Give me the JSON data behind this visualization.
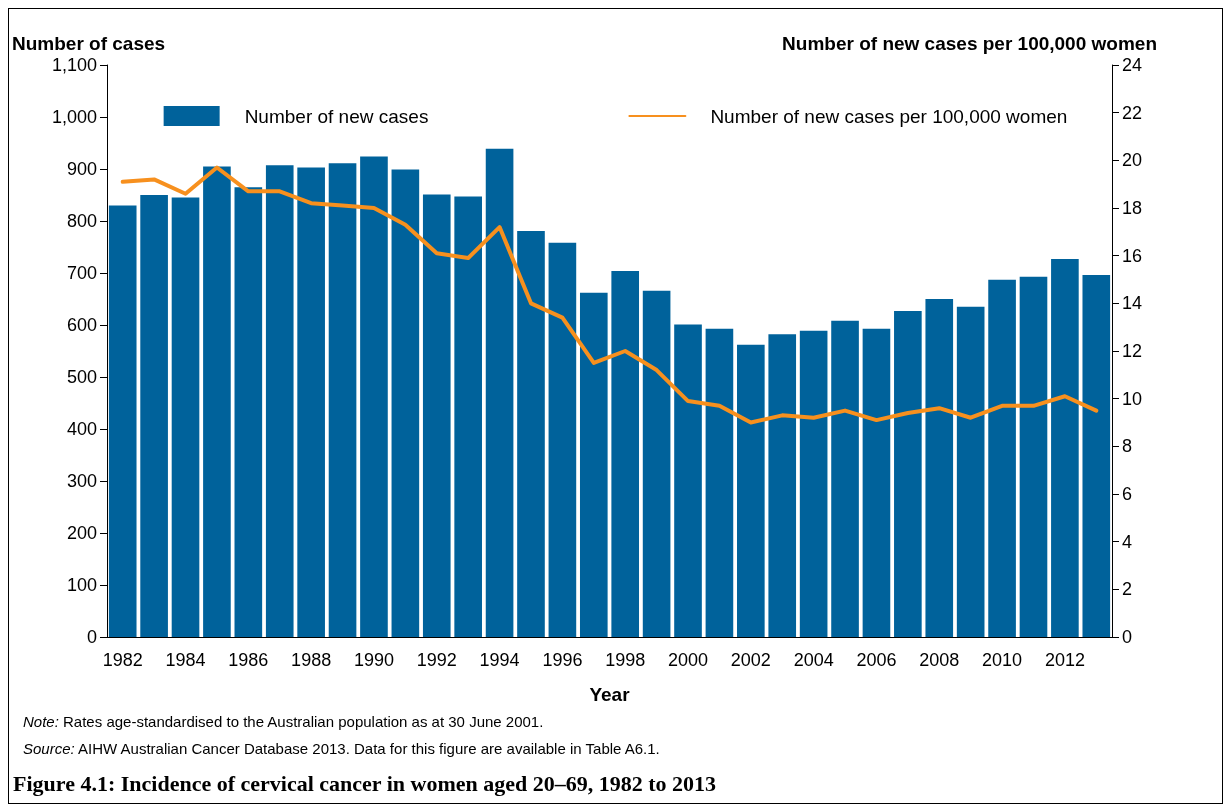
{
  "chart_data": {
    "type": "bar",
    "title": "Figure 4.1: Incidence of cervical cancer in women aged 20–69, 1982 to 2013",
    "xlabel": "Year",
    "ylabel": "Number of cases",
    "y2label": "Number of new cases per 100,000 women",
    "categories": [
      "1982",
      null,
      "1984",
      null,
      "1986",
      null,
      "1988",
      null,
      "1990",
      null,
      "1992",
      null,
      "1994",
      null,
      "1996",
      null,
      "1998",
      null,
      "2000",
      null,
      "2002",
      null,
      "2004",
      null,
      "2006",
      null,
      "2008",
      null,
      "2010",
      null,
      "2012",
      null
    ],
    "series": [
      {
        "name": "Number of new cases",
        "color": "#00629b",
        "values": [
          830,
          850,
          845,
          905,
          865,
          907,
          903,
          911,
          924,
          899,
          851,
          847,
          939,
          781,
          758,
          662,
          704,
          666,
          601,
          593,
          562,
          582,
          589,
          608,
          593,
          627,
          650,
          635,
          687,
          693,
          727,
          696
        ]
      },
      {
        "name": "Number of new cases per 100,000 women",
        "type": "line",
        "axis": "y2",
        "color": "#f7901e",
        "values": [
          19.1,
          19.2,
          18.6,
          19.7,
          18.7,
          18.7,
          18.2,
          18.1,
          18.0,
          17.3,
          16.1,
          15.9,
          17.2,
          14.0,
          13.4,
          11.5,
          12.0,
          11.2,
          9.9,
          9.7,
          9.0,
          9.3,
          9.2,
          9.5,
          9.1,
          9.4,
          9.6,
          9.2,
          9.7,
          9.7,
          10.1,
          9.5
        ]
      }
    ],
    "ylim": [
      0,
      1100
    ],
    "yticks": [
      0,
      100,
      200,
      300,
      400,
      500,
      600,
      700,
      800,
      900,
      {
        "value": 1000,
        "label": "1,000"
      },
      {
        "value": 1100,
        "label": "1,100"
      }
    ],
    "y2lim": [
      0,
      24
    ],
    "y2ticks": [
      0,
      2,
      4,
      6,
      8,
      10,
      12,
      14,
      16,
      18,
      20,
      22,
      24
    ],
    "legend": "top",
    "grid": false,
    "marker": "none",
    "line_style": "solid",
    "annotations": [
      "Note: Rates age-standardised to the Australian population as at 30 June 2001.",
      "Source: AIHW Australian Cancer Database 2013. Data for this figure are available in Table A6.1."
    ]
  }
}
